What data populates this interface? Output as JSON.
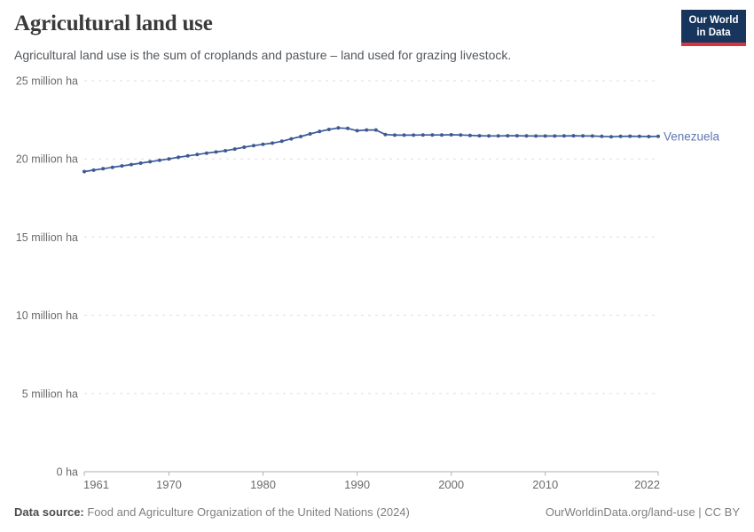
{
  "header": {
    "title": "Agricultural land use",
    "subtitle": "Agricultural land use is the sum of croplands and pasture – land used for grazing livestock."
  },
  "logo": {
    "line1": "Our World",
    "line2": "in Data",
    "bg_color": "#18365d",
    "accent_color": "#d9343e"
  },
  "chart_data": {
    "type": "line",
    "title": "Agricultural land use",
    "unit": "million ha",
    "entity": "Venezuela",
    "xlim": [
      1961,
      2022
    ],
    "ylim": [
      0,
      25
    ],
    "grid": true,
    "legend_position": "line-end-label",
    "grid_color": "#dedede",
    "axis_color": "#afafaf",
    "tick_label_color": "#6b6b6b",
    "years": [
      1961,
      1962,
      1963,
      1964,
      1965,
      1966,
      1967,
      1968,
      1969,
      1970,
      1971,
      1972,
      1973,
      1974,
      1975,
      1976,
      1977,
      1978,
      1979,
      1980,
      1981,
      1982,
      1983,
      1984,
      1985,
      1986,
      1987,
      1988,
      1989,
      1990,
      1991,
      1992,
      1993,
      1994,
      1995,
      1996,
      1997,
      1998,
      1999,
      2000,
      2001,
      2002,
      2003,
      2004,
      2005,
      2006,
      2007,
      2008,
      2009,
      2010,
      2011,
      2012,
      2013,
      2014,
      2015,
      2016,
      2017,
      2018,
      2019,
      2020,
      2021,
      2022
    ],
    "series": [
      {
        "name": "Venezuela",
        "color": "#3d5a96",
        "label_color": "#5e79b2",
        "values": [
          19.19,
          19.28,
          19.37,
          19.46,
          19.55,
          19.64,
          19.73,
          19.82,
          19.91,
          20.0,
          20.1,
          20.19,
          20.28,
          20.37,
          20.44,
          20.52,
          20.63,
          20.75,
          20.85,
          20.93,
          21.01,
          21.13,
          21.28,
          21.43,
          21.6,
          21.75,
          21.88,
          21.98,
          21.95,
          21.8,
          21.85,
          21.85,
          21.56,
          21.52,
          21.52,
          21.52,
          21.53,
          21.53,
          21.53,
          21.54,
          21.53,
          21.5,
          21.48,
          21.47,
          21.47,
          21.48,
          21.48,
          21.47,
          21.46,
          21.46,
          21.46,
          21.47,
          21.48,
          21.47,
          21.46,
          21.44,
          21.42,
          21.44,
          21.45,
          21.44,
          21.43,
          21.44
        ]
      }
    ],
    "yticks": [
      {
        "value": 0,
        "label": "0 ha"
      },
      {
        "value": 5,
        "label": "5 million ha"
      },
      {
        "value": 10,
        "label": "10 million ha"
      },
      {
        "value": 15,
        "label": "15 million ha"
      },
      {
        "value": 20,
        "label": "20 million ha"
      },
      {
        "value": 25,
        "label": "25 million ha"
      }
    ],
    "xticks": [
      {
        "value": 1961,
        "label": "1961"
      },
      {
        "value": 1970,
        "label": "1970"
      },
      {
        "value": 1980,
        "label": "1980"
      },
      {
        "value": 1990,
        "label": "1990"
      },
      {
        "value": 2000,
        "label": "2000"
      },
      {
        "value": 2010,
        "label": "2010"
      },
      {
        "value": 2022,
        "label": "2022"
      }
    ]
  },
  "footer": {
    "datasource_label": "Data source:",
    "datasource_text": " Food and Agriculture Organization of the United Nations (2024)",
    "credit": "OurWorldinData.org/land-use | CC BY"
  }
}
